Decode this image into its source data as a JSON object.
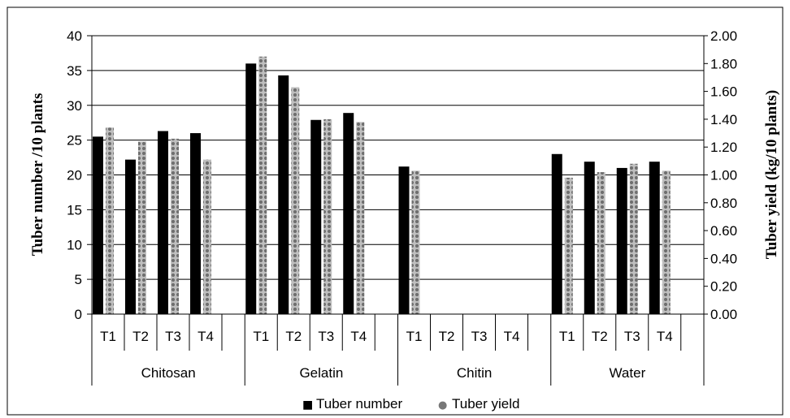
{
  "chart_data": {
    "type": "bar",
    "groups": [
      "Chitosan",
      "Gelatin",
      "Chitin",
      "Water"
    ],
    "treatments": [
      "T1",
      "T2",
      "T3",
      "T4"
    ],
    "series": [
      {
        "name": "Tuber number",
        "axis": "left",
        "color": "#000000",
        "values": [
          25.5,
          22.2,
          26.3,
          26.0,
          36.0,
          34.3,
          27.9,
          28.9,
          21.2,
          0,
          0,
          0,
          23.0,
          21.9,
          21.0,
          21.9
        ]
      },
      {
        "name": "Tuber yield",
        "axis": "right",
        "color": "#808080",
        "values": [
          1.34,
          1.24,
          1.26,
          1.11,
          1.85,
          1.63,
          1.4,
          1.38,
          1.03,
          0,
          0,
          0,
          0.98,
          1.02,
          1.08,
          1.03
        ]
      }
    ],
    "ylabel": "Tuber number /10 plants",
    "y2label": "Tuber yield (kg/10 plants)",
    "ylim": [
      0,
      40
    ],
    "y2lim": [
      0,
      2.0
    ],
    "yticks": [
      "0",
      "5",
      "10",
      "15",
      "20",
      "25",
      "30",
      "35",
      "40"
    ],
    "y2ticks": [
      "0.00",
      "0.20",
      "0.40",
      "0.60",
      "0.80",
      "1.00",
      "1.20",
      "1.40",
      "1.60",
      "1.80",
      "2.00"
    ],
    "grid": true,
    "legend": "bottom-center",
    "legend_markers": [
      "■",
      "●"
    ]
  }
}
